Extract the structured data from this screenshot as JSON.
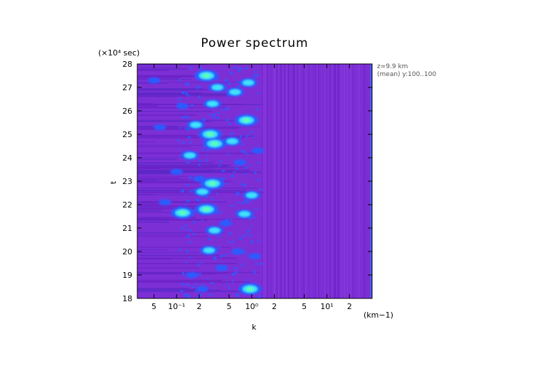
{
  "chart_data": {
    "type": "heatmap",
    "title": "Power spectrum",
    "xlabel": "k",
    "ylabel": "t",
    "x_unit": "(km−1)",
    "y_unit": "(×10⁴ sec)",
    "x_scale": "log",
    "xlim": [
      0.03,
      40
    ],
    "ylim": [
      18,
      28
    ],
    "x_ticks": [
      {
        "value": 0.05,
        "label": "5"
      },
      {
        "value": 0.1,
        "label": "10⁻¹"
      },
      {
        "value": 0.2,
        "label": "2"
      },
      {
        "value": 0.5,
        "label": "5"
      },
      {
        "value": 1,
        "label": "10⁰"
      },
      {
        "value": 2,
        "label": "2"
      },
      {
        "value": 5,
        "label": "5"
      },
      {
        "value": 10,
        "label": "10¹"
      },
      {
        "value": 20,
        "label": "2"
      }
    ],
    "y_ticks": [
      18,
      19,
      20,
      21,
      22,
      23,
      24,
      25,
      26,
      27,
      28
    ],
    "annotations": [
      "z=9.9 km",
      "(mean) y:100..100"
    ],
    "colors": {
      "background": "#7d2fd6",
      "low": "#6a21c4",
      "mid": "#2b5bff",
      "high": "#3fe0ff",
      "peak": "#5cffb0"
    },
    "peaks": [
      {
        "k": 0.12,
        "t": 21.65,
        "level": 3
      },
      {
        "k": 0.15,
        "t": 24.1,
        "level": 2
      },
      {
        "k": 0.25,
        "t": 27.5,
        "level": 3
      },
      {
        "k": 0.28,
        "t": 25.0,
        "level": 3
      },
      {
        "k": 0.3,
        "t": 26.3,
        "level": 2
      },
      {
        "k": 0.22,
        "t": 22.55,
        "level": 2
      },
      {
        "k": 0.3,
        "t": 22.9,
        "level": 3
      },
      {
        "k": 0.25,
        "t": 21.8,
        "level": 3
      },
      {
        "k": 0.32,
        "t": 24.6,
        "level": 3
      },
      {
        "k": 0.35,
        "t": 27.0,
        "level": 2
      },
      {
        "k": 0.27,
        "t": 20.05,
        "level": 2
      },
      {
        "k": 0.32,
        "t": 20.9,
        "level": 2
      },
      {
        "k": 0.18,
        "t": 25.4,
        "level": 2
      },
      {
        "k": 0.55,
        "t": 24.7,
        "level": 2
      },
      {
        "k": 0.6,
        "t": 26.8,
        "level": 2
      },
      {
        "k": 0.85,
        "t": 25.6,
        "level": 3
      },
      {
        "k": 0.95,
        "t": 18.4,
        "level": 3
      },
      {
        "k": 0.8,
        "t": 21.6,
        "level": 2
      },
      {
        "k": 1.0,
        "t": 22.4,
        "level": 2
      },
      {
        "k": 0.9,
        "t": 27.2,
        "level": 2
      },
      {
        "k": 0.12,
        "t": 26.2,
        "level": 1
      },
      {
        "k": 0.2,
        "t": 23.1,
        "level": 1
      },
      {
        "k": 0.1,
        "t": 23.4,
        "level": 1
      },
      {
        "k": 0.06,
        "t": 25.3,
        "level": 1
      },
      {
        "k": 0.05,
        "t": 27.3,
        "level": 1
      },
      {
        "k": 0.07,
        "t": 22.1,
        "level": 1
      },
      {
        "k": 0.16,
        "t": 19.0,
        "level": 1
      },
      {
        "k": 0.22,
        "t": 18.4,
        "level": 1
      },
      {
        "k": 0.4,
        "t": 19.3,
        "level": 1
      },
      {
        "k": 0.45,
        "t": 21.2,
        "level": 1
      },
      {
        "k": 0.65,
        "t": 20.0,
        "level": 1
      },
      {
        "k": 0.7,
        "t": 23.8,
        "level": 1
      },
      {
        "k": 1.1,
        "t": 19.8,
        "level": 1
      },
      {
        "k": 1.2,
        "t": 24.3,
        "level": 1
      }
    ]
  }
}
